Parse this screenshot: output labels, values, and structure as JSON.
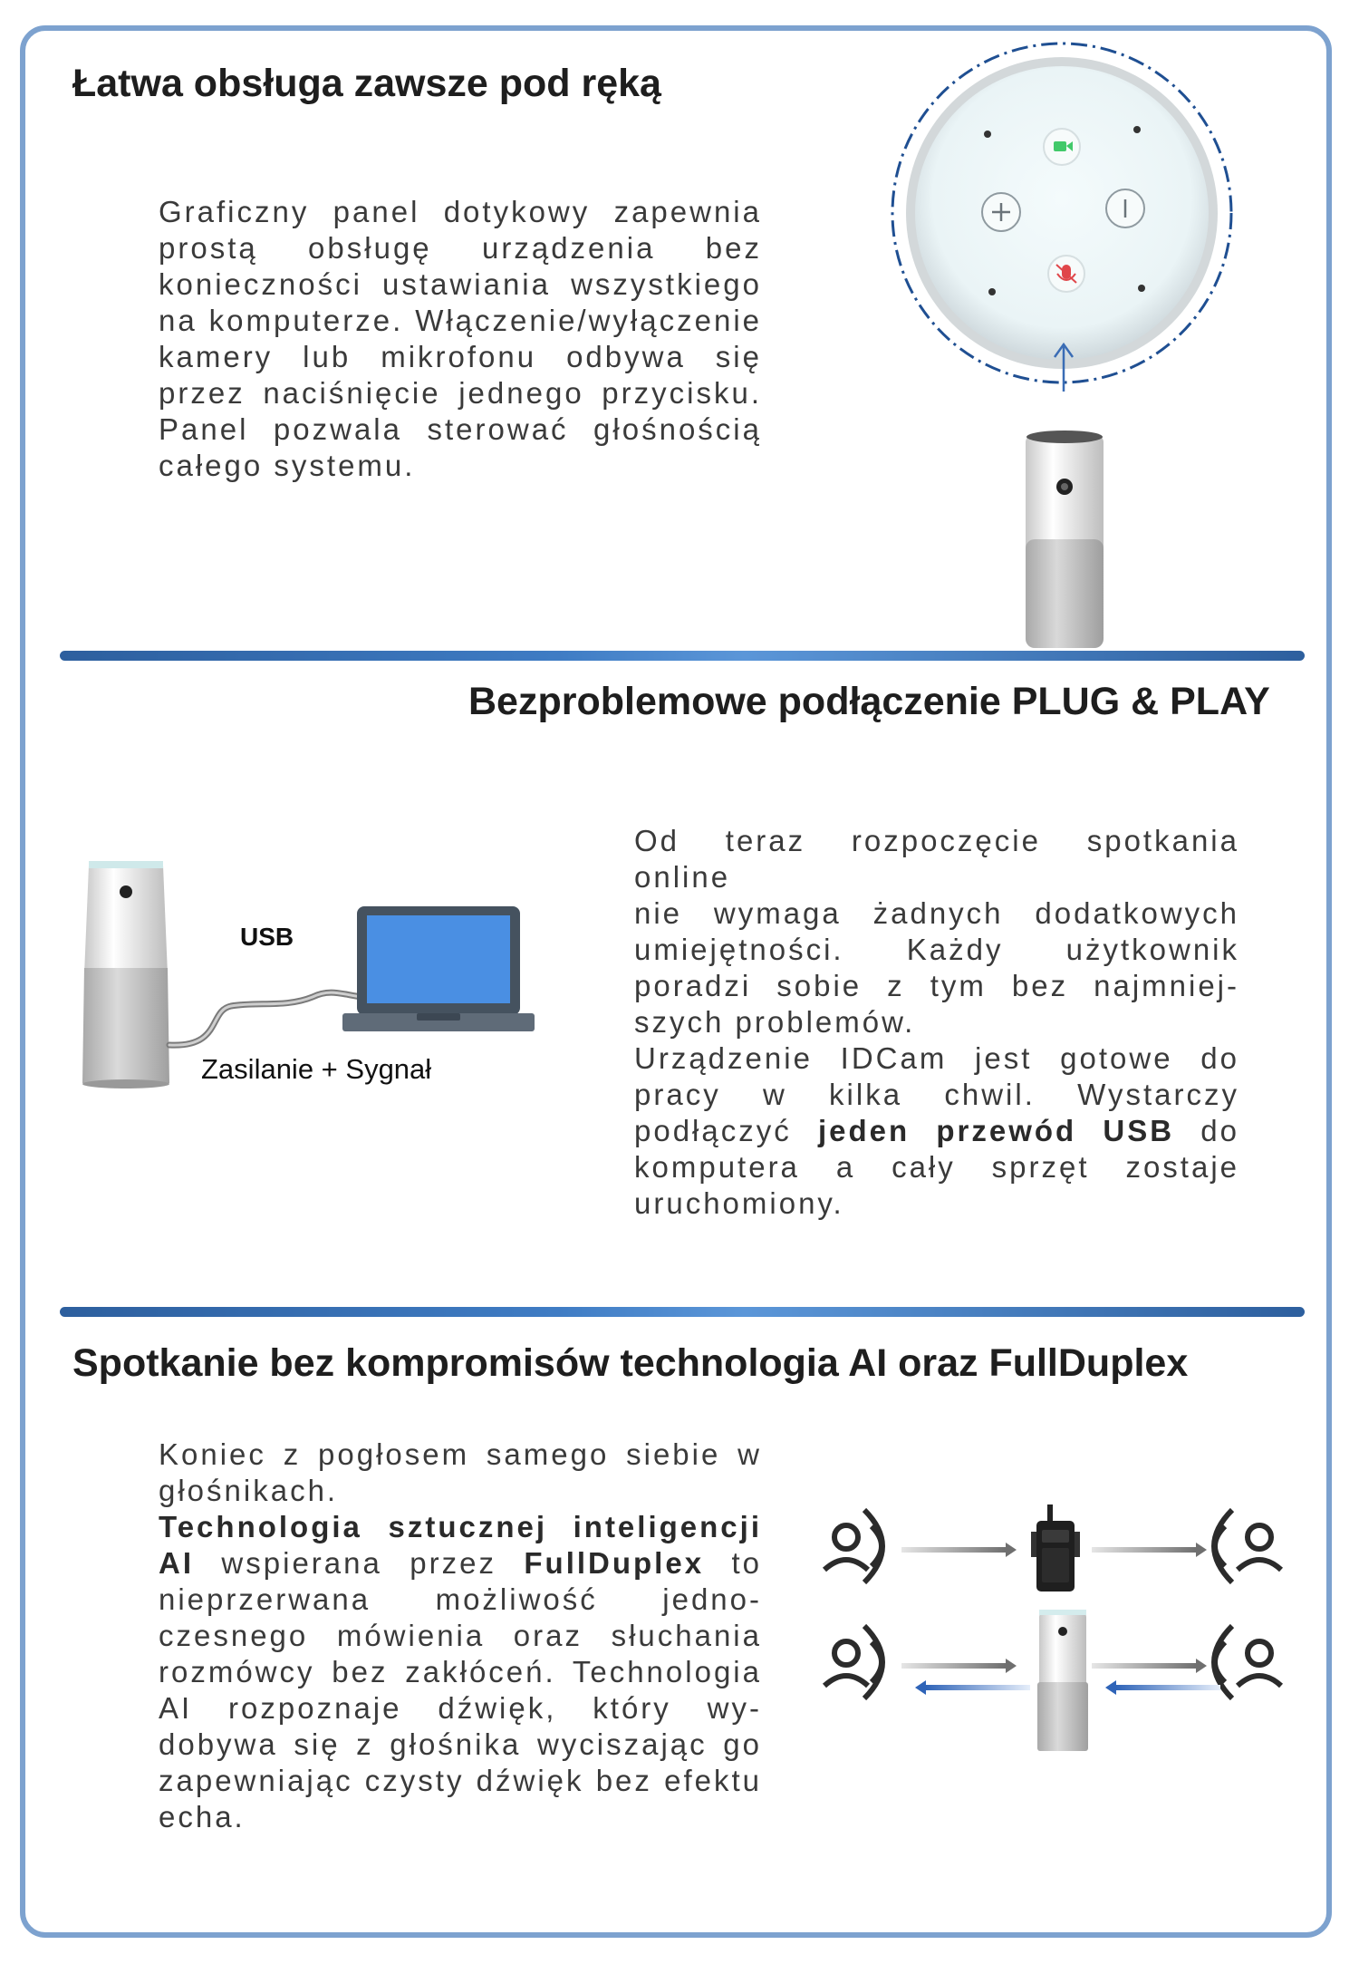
{
  "section1": {
    "title": "Łatwa obsługa zawsze pod ręką",
    "lines": [
      "Graficzny panel dotykowy zapewnia",
      "prostą obsługę urządzenia bez",
      "konieczności ustawiania wszystkiego",
      "na komputerze. Włączenie/wyłączenie",
      "kamery lub mikrofonu odbywa się",
      "przez naciśnięcie jednego przycisku.",
      "Panel pozwala sterować głośnością",
      "całego systemu."
    ]
  },
  "section2": {
    "title": "Bezproblemowe podłączenie PLUG & PLAY",
    "usb_label": "USB",
    "cable_label": "Zasilanie + Sygnał",
    "lines": [
      "Od teraz rozpoczęcie spotkania online",
      "nie wymaga żadnych dodatkowych",
      "umiejętności. Każdy użytkownik",
      "poradzi sobie z tym bez najmniej-",
      "szych problemów.",
      "Urządzenie IDCam jest gotowe do",
      "pracy w kilka chwil. Wystarczy"
    ],
    "line8_pre": "podłączyć",
    "line8_bold": "jeden przewód USB",
    "line8_post": "do",
    "lines_end": [
      "komputera a cały sprzęt zostaje",
      "uruchomiony."
    ]
  },
  "section3": {
    "title": "Spotkanie bez kompromisów technologia AI oraz FullDuplex",
    "line1": "Koniec z pogłosem samego siebie w",
    "line2": "głośnikach.",
    "line3_bold": "Technologia sztucznej inteligencji",
    "line4_bold1": "AI",
    "line4_mid": "wspierana przez",
    "line4_bold2": "FullDuplex",
    "line4_post": "to",
    "lines_end": [
      "nieprzerwana możliwość jedno-",
      "czesnego mówienia oraz słuchania",
      "rozmówcy bez zakłóceń. Technologia",
      "AI rozpoznaje dźwięk, który wy-",
      "dobywa się z głośnika wyciszając go",
      "zapewniając czysty dźwięk bez efektu",
      "echa."
    ]
  },
  "colors": {
    "frame": "#7da2cf",
    "divider": "#2d5f9e",
    "accent_blue": "#3f7cc4"
  },
  "icons": [
    "touch-panel-icon",
    "camera-device-icon",
    "laptop-icon",
    "person-speaking-icon",
    "walkie-talkie-icon",
    "arrow-icon"
  ]
}
